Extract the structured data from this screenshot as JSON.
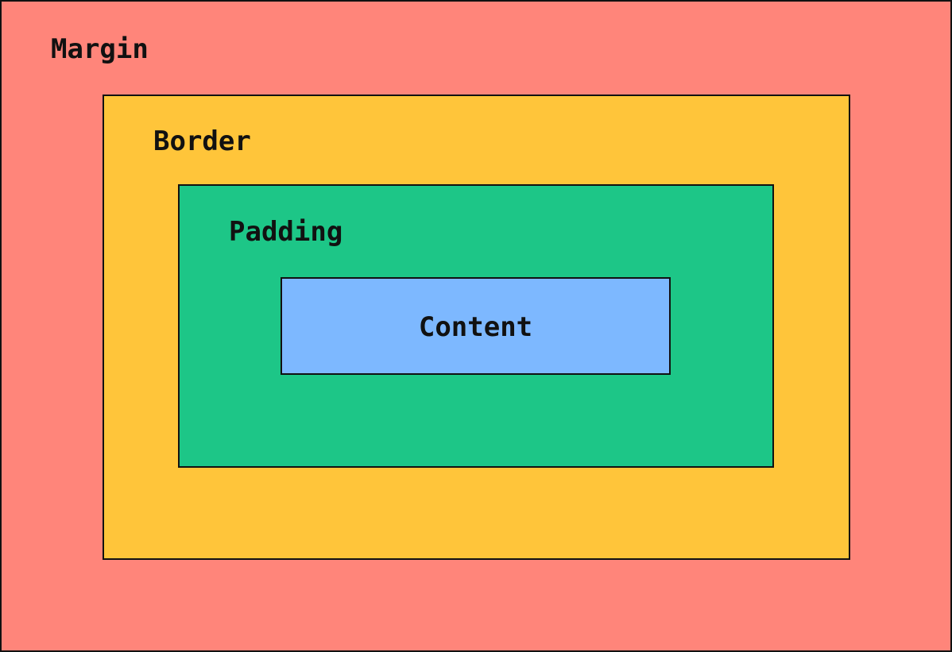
{
  "layers": {
    "margin": {
      "label": "Margin",
      "color": "#FF857A"
    },
    "border": {
      "label": "Border",
      "color": "#FFC53A"
    },
    "padding": {
      "label": "Padding",
      "color": "#1DC687"
    },
    "content": {
      "label": "Content",
      "color": "#7DB8FF"
    }
  }
}
